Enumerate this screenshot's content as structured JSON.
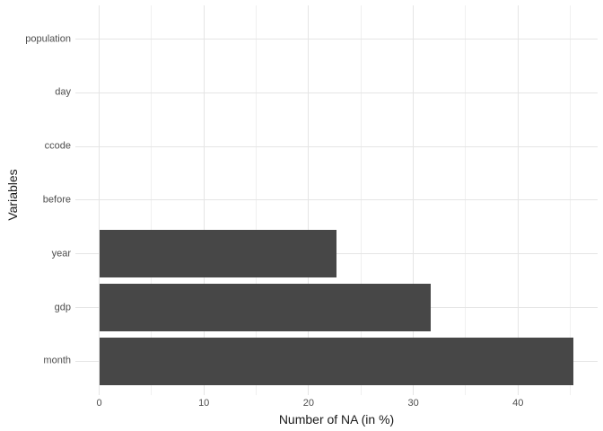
{
  "chart_data": {
    "type": "bar",
    "orientation": "horizontal",
    "title": "",
    "xlabel": "Number of NA (in %)",
    "ylabel": "Variables",
    "categories": [
      "population",
      "day",
      "ccode",
      "before",
      "year",
      "gdp",
      "month"
    ],
    "values": [
      0,
      0,
      0,
      0,
      22.7,
      31.7,
      45.3
    ],
    "xlim": [
      0,
      45.3
    ],
    "x_major_ticks": [
      0,
      10,
      20,
      30,
      40
    ],
    "x_minor_ticks": [
      5,
      15,
      25,
      35,
      45
    ],
    "grid": "on",
    "legend": "none",
    "colors": {
      "bar": "#474747",
      "grid_major": "#e5e5e5",
      "grid_minor": "#f0f0f0",
      "tick_label": "#4d4d4d",
      "axis_title": "#1a1a1a",
      "background": "#ffffff"
    }
  }
}
